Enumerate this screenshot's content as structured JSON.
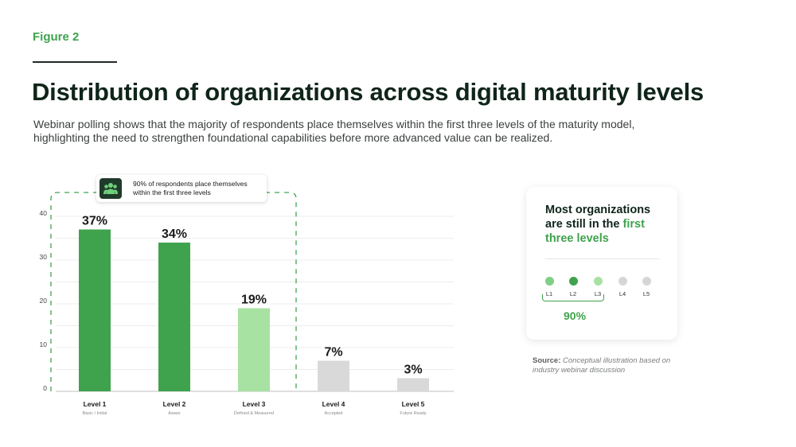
{
  "header": {
    "figure_label": "Figure 2",
    "title": "Distribution of organizations across digital maturity levels",
    "subtitle": "Webinar polling shows that the majority of respondents place themselves within the first three levels of the maturity model, highlighting the need to strengthen foundational capabilities before more advanced value can be realized."
  },
  "callout": {
    "icon": "people-group-icon",
    "text": "90% of respondents place themselves within the first three levels"
  },
  "summary_card": {
    "heading_part1": "Most organizations are still in the ",
    "heading_highlight": "first three levels",
    "levels": [
      {
        "label": "L1",
        "color": "#7fcf85"
      },
      {
        "label": "L2",
        "color": "#3fa34d"
      },
      {
        "label": "L3",
        "color": "#a8e2a3"
      },
      {
        "label": "L4",
        "color": "#d6d6d6"
      },
      {
        "label": "L5",
        "color": "#d6d6d6"
      }
    ],
    "percent": "90%"
  },
  "source": {
    "label": "Source:",
    "text": "Conceptual illustration based on industry webinar discussion"
  },
  "colors": {
    "accent": "#3fa34d",
    "grid": "#e6e6e6",
    "dash": "#3fa34d"
  },
  "chart_data": {
    "type": "bar",
    "categories": [
      "Level 1",
      "Level 2",
      "Level 3",
      "Level 4",
      "Level 5"
    ],
    "sublabels": [
      "Basic / Initial",
      "Aware",
      "Defined & Measured",
      "Accepted",
      "Future Ready"
    ],
    "values": [
      37,
      34,
      19,
      7,
      3
    ],
    "value_labels": [
      "37%",
      "34%",
      "19%",
      "7%",
      "3%"
    ],
    "bar_colors": [
      "#3fa34d",
      "#3fa34d",
      "#a8e2a3",
      "#d9d9d9",
      "#d9d9d9"
    ],
    "yticks": [
      0,
      10,
      20,
      30,
      40
    ],
    "ylim": [
      0,
      40
    ],
    "grid": true,
    "highlight_group": [
      "Level 1",
      "Level 2",
      "Level 3"
    ],
    "title": "",
    "xlabel": "",
    "ylabel": ""
  }
}
